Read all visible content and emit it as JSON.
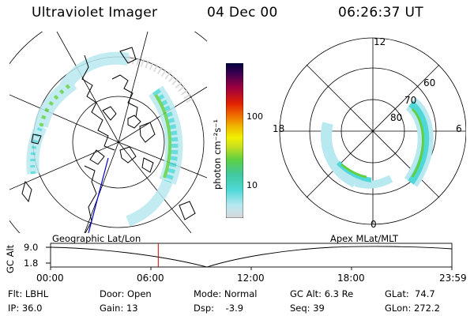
{
  "header": {
    "instrument": "Ultraviolet Imager",
    "date": "04 Dec 00",
    "time": "06:26:37 UT"
  },
  "colorbar": {
    "unit_label": "photon cm⁻²s⁻¹",
    "ticks": [
      "100",
      "10"
    ],
    "stops": [
      "#d8d8d8",
      "#b8e8f0",
      "#50d8d8",
      "#40c8a0",
      "#60d040",
      "#c8e020",
      "#f0f000",
      "#f0c000",
      "#f07000",
      "#e02000",
      "#a00040",
      "#400050",
      "#000040"
    ]
  },
  "left_map": {
    "title": "Geographic Lat/Lon"
  },
  "right_map": {
    "title": "Apex  MLat/MLT",
    "mlt_labels": {
      "top": "12",
      "left": "18",
      "right": "6",
      "bottom": "0"
    },
    "lat_labels": [
      "60",
      "70",
      "80"
    ]
  },
  "altitude_plot": {
    "ylabel": "GC Alt",
    "yticks": [
      "9.0",
      "1.8"
    ],
    "xticks": [
      "00:00",
      "06:00",
      "12:00",
      "18:00",
      "23:59"
    ],
    "current_time_marker_hours": 6.44
  },
  "footer": {
    "filter": "Flt: LBHL",
    "ip": "IP: 36.0",
    "door": "Door: Open",
    "gain": "Gain: 13",
    "mode": "Mode: Normal",
    "dsp": "Dsp:    -3.9",
    "gc_alt": "GC Alt: 6.3 Re",
    "seq": "Seq: 39",
    "glat": "GLat:  74.7",
    "glon": "GLon: 272.2"
  }
}
